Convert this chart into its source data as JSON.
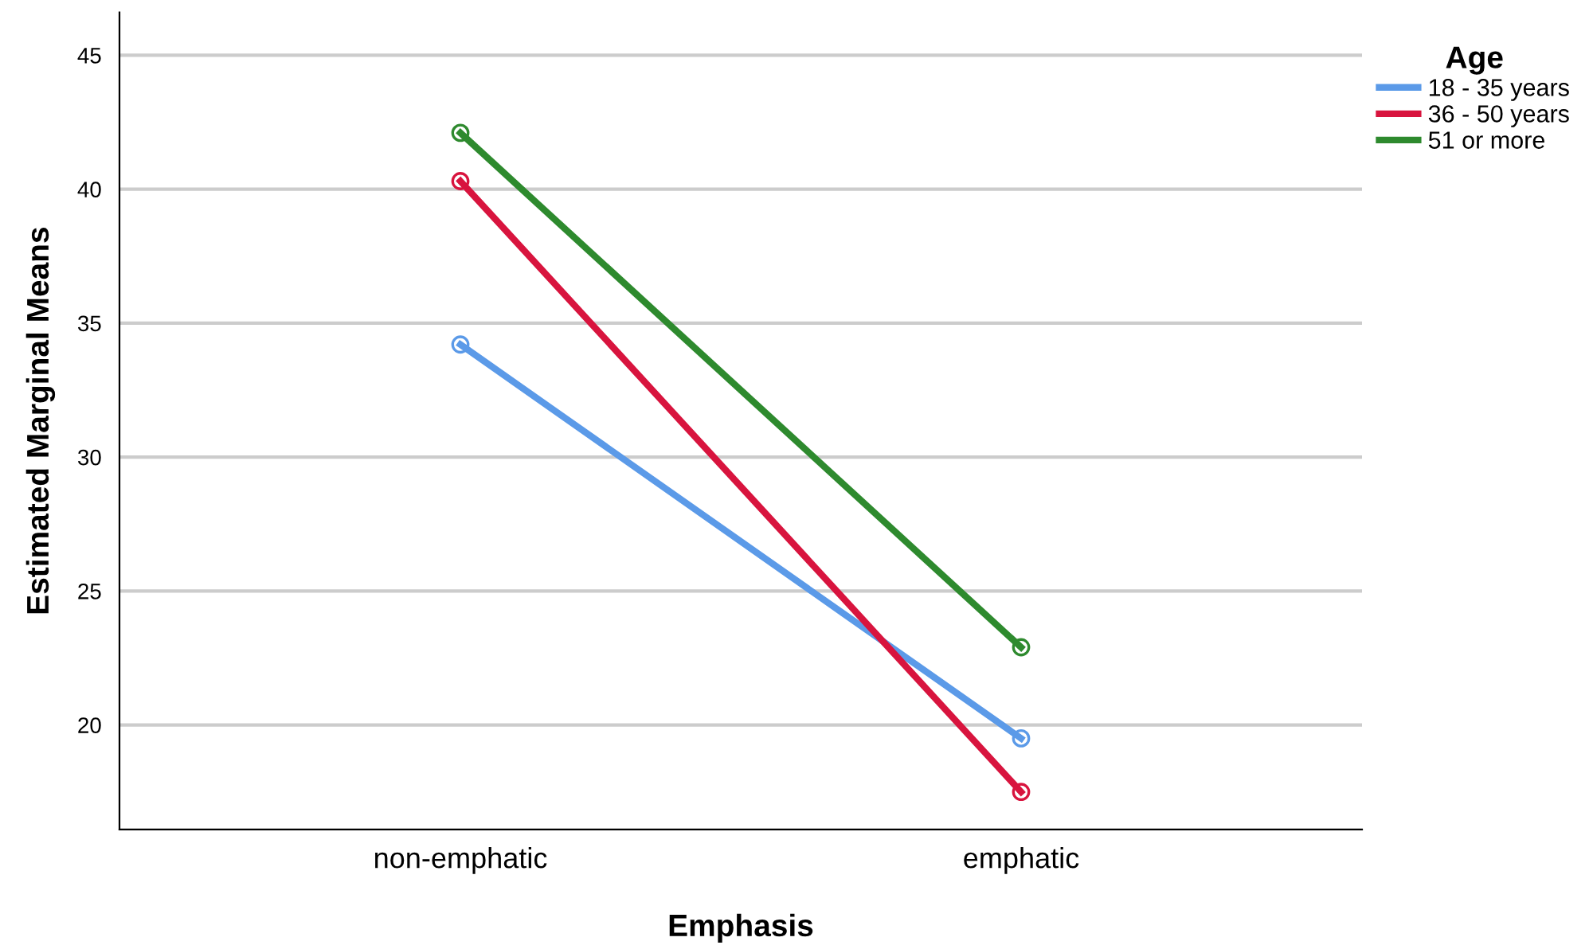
{
  "chart_data": {
    "type": "line",
    "xlabel": "Emphasis",
    "ylabel": "Estimated Marginal Means",
    "legend_title": "Age",
    "categories": [
      "non-emphatic",
      "emphatic"
    ],
    "series": [
      {
        "name": "18 - 35 years",
        "color": "#5b9ae8",
        "values": [
          34.2,
          19.5
        ]
      },
      {
        "name": "36 - 50 years",
        "color": "#d8143e",
        "values": [
          40.3,
          17.5
        ]
      },
      {
        "name": "51 or more",
        "color": "#2e8a2e",
        "values": [
          42.1,
          22.9
        ]
      }
    ],
    "ylim": [
      16.1,
      46.6
    ],
    "yticks": [
      20,
      25,
      30,
      35,
      40,
      45
    ],
    "grid": "y",
    "legend": "top right",
    "marker": "circle",
    "line_style": "solid"
  }
}
